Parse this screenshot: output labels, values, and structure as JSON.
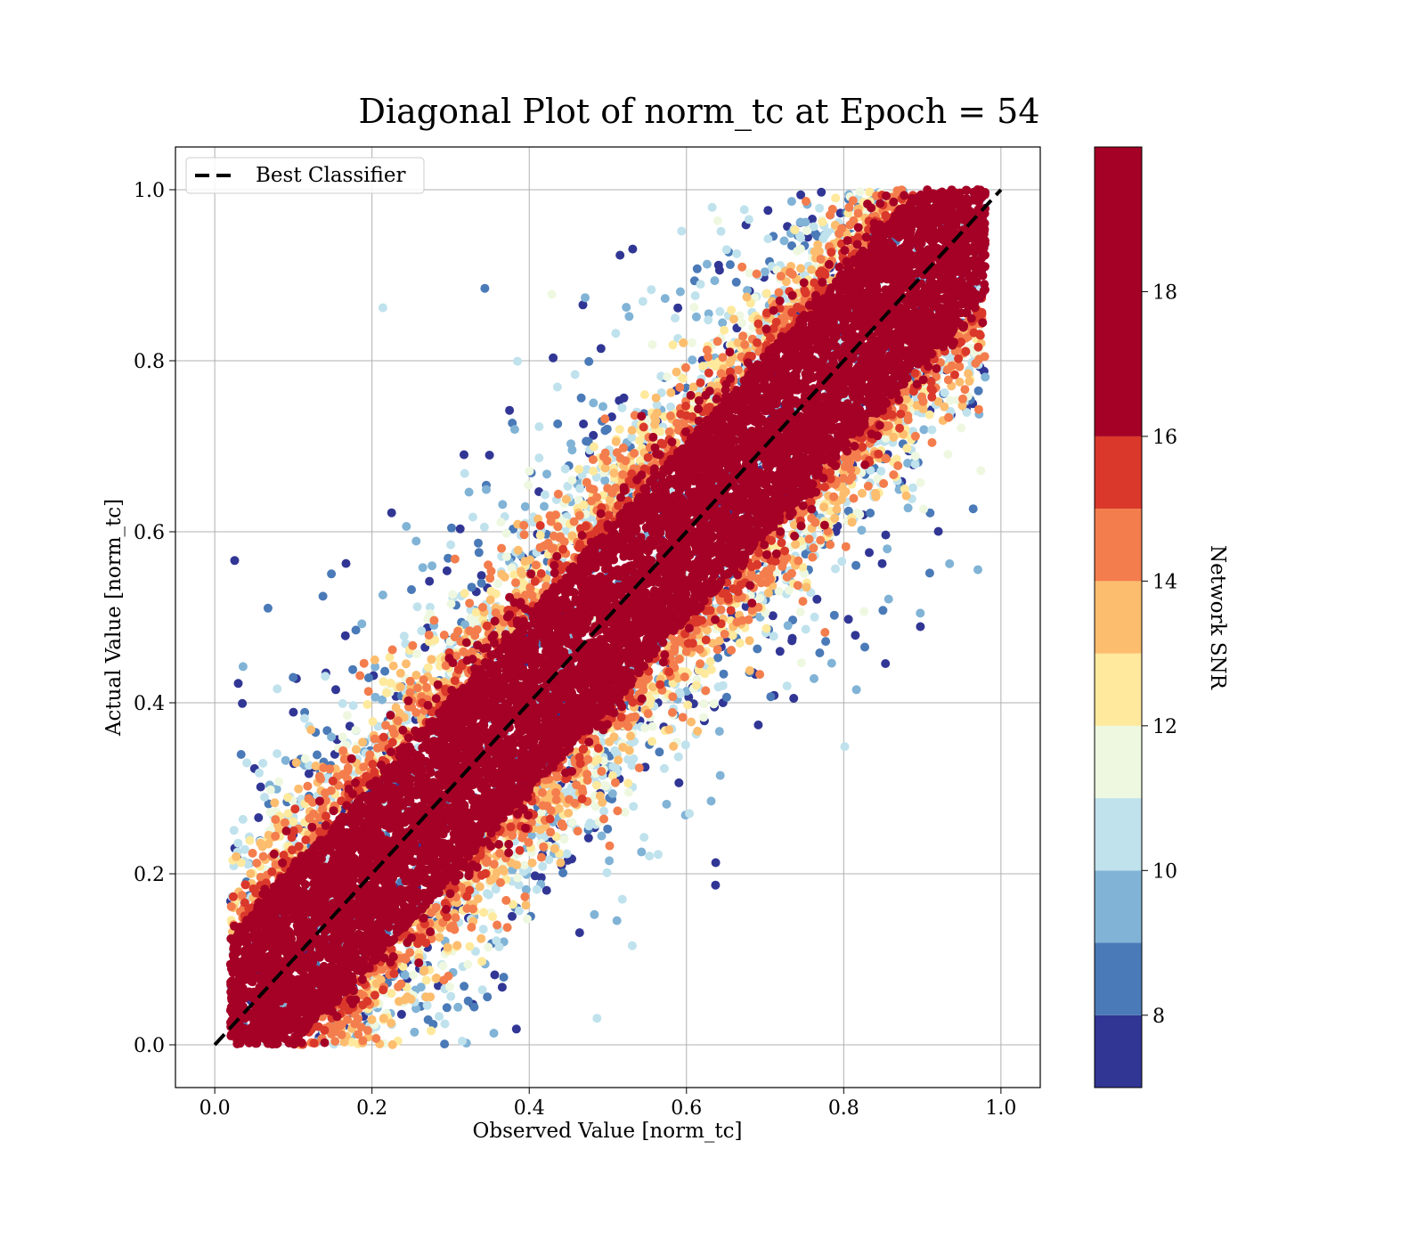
{
  "chart_data": {
    "type": "scatter",
    "title": "Diagonal Plot of norm_tc at Epoch = 54",
    "xlabel": "Observed Value [norm_tc]",
    "ylabel": "Actual Value [norm_tc]",
    "xlim": [
      -0.05,
      1.05
    ],
    "ylim": [
      -0.05,
      1.05
    ],
    "x_ticks": [
      0.0,
      0.2,
      0.4,
      0.6,
      0.8,
      1.0
    ],
    "y_ticks": [
      0.0,
      0.2,
      0.4,
      0.6,
      0.8,
      1.0
    ],
    "x_tick_labels": [
      "0.0",
      "0.2",
      "0.4",
      "0.6",
      "0.8",
      "1.0"
    ],
    "y_tick_labels": [
      "0.0",
      "0.2",
      "0.4",
      "0.6",
      "0.8",
      "1.0"
    ],
    "grid": true,
    "legend": {
      "placement": "top-left",
      "entries": [
        {
          "label": "Best Classifier",
          "style": "dashed",
          "color": "#000000"
        }
      ]
    },
    "reference_line": {
      "name": "Best Classifier",
      "x": [
        0.0,
        1.0
      ],
      "y": [
        0.0,
        1.0
      ],
      "style": "dashed",
      "color": "#000000"
    },
    "colorbar": {
      "label": "Network SNR",
      "range": [
        7,
        20
      ],
      "ticks": [
        8,
        10,
        12,
        14,
        16,
        18
      ],
      "tick_labels": [
        "8",
        "10",
        "12",
        "14",
        "16",
        "18"
      ],
      "bins": [
        {
          "from": 7,
          "to": 8,
          "color": "#313695"
        },
        {
          "from": 8,
          "to": 9,
          "color": "#4a7ab7"
        },
        {
          "from": 9,
          "to": 10,
          "color": "#80b3d6"
        },
        {
          "from": 10,
          "to": 11,
          "color": "#bfe2ed"
        },
        {
          "from": 11,
          "to": 12,
          "color": "#eef8e0"
        },
        {
          "from": 12,
          "to": 13,
          "color": "#fee99d"
        },
        {
          "from": 13,
          "to": 14,
          "color": "#fdbd6e"
        },
        {
          "from": 14,
          "to": 15,
          "color": "#f47d4d"
        },
        {
          "from": 15,
          "to": 16,
          "color": "#da382a"
        },
        {
          "from": 16,
          "to": 20,
          "color": "#a50026"
        }
      ]
    },
    "point_distribution": {
      "description_bands": [
        {
          "max_distance": 0.1,
          "snr_range": [
            18,
            20
          ]
        },
        {
          "max_distance": 0.15,
          "snr_range": [
            15,
            18
          ]
        },
        {
          "max_distance": 0.22,
          "snr_range": [
            11,
            15
          ]
        },
        {
          "max_distance": 0.5,
          "snr_range": [
            7,
            11
          ]
        }
      ],
      "x_range": [
        0.02,
        0.98
      ],
      "y_range": [
        0.0,
        1.0
      ]
    }
  }
}
